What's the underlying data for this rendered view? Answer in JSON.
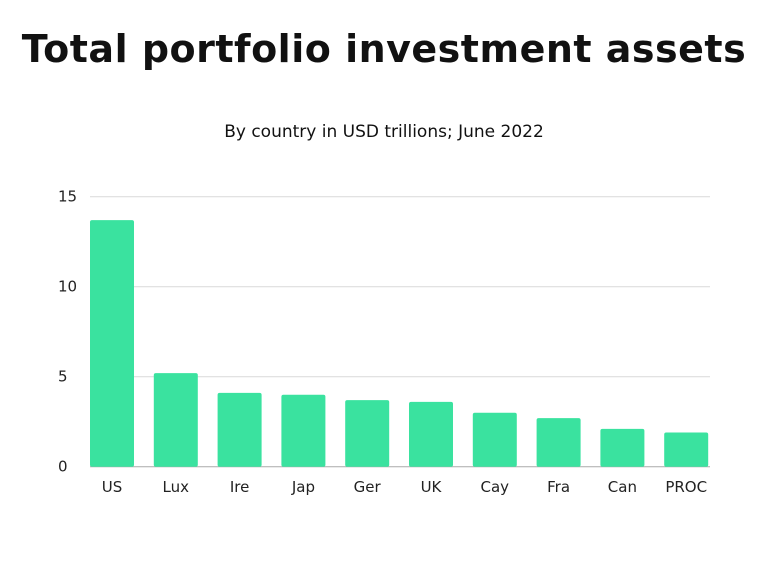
{
  "chart_data": {
    "type": "bar",
    "title": "Total portfolio investment assets",
    "subtitle": "By country in USD trillions; June 2022",
    "xlabel": "",
    "ylabel": "",
    "categories": [
      "US",
      "Lux",
      "Ire",
      "Jap",
      "Ger",
      "UK",
      "Cay",
      "Fra",
      "Can",
      "PROC"
    ],
    "values": [
      13.7,
      5.2,
      4.1,
      4.0,
      3.7,
      3.6,
      3.0,
      2.7,
      2.1,
      1.9
    ],
    "ylim": [
      0,
      15
    ],
    "yticks": [
      0,
      5,
      10,
      15
    ],
    "grid": true,
    "bar_color": "#3ae29f",
    "grid_color": "#d9d9d9"
  }
}
